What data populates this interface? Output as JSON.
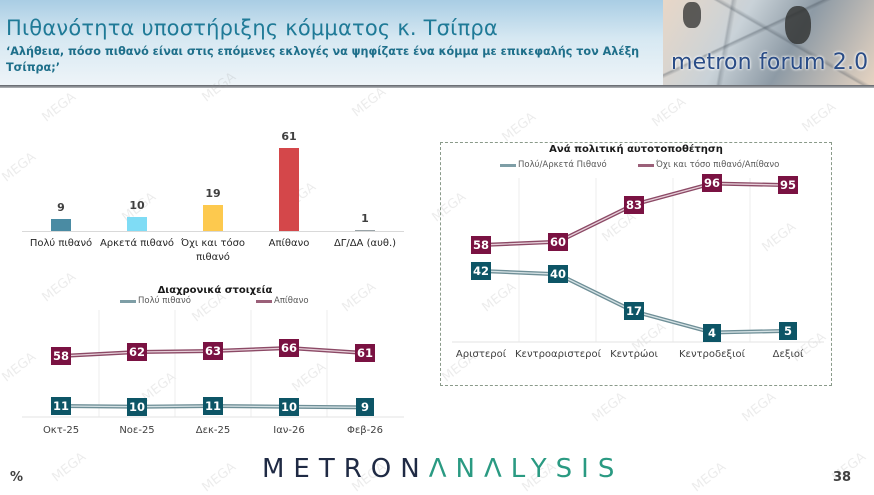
{
  "header": {
    "title": "Πιθανότητα υποστήριξης κόμματος κ. Τσίπρα",
    "subtitle": "‘Αλήθεια, πόσο πιθανό είναι στις επόμενες εκλογές να ψηφίζατε ένα κόμμα με επικεφαλής τον Αλέξη Τσίπρα;’",
    "logo_text": "metron forum 2.0"
  },
  "watermark": "MEGA",
  "chart_data": [
    {
      "type": "bar",
      "title": "",
      "categories": [
        "Πολύ πιθανό",
        "Αρκετά πιθανό",
        "Όχι και τόσο πιθανό",
        "Απίθανο",
        "ΔΓ/ΔΑ (αυθ.)"
      ],
      "values": [
        9,
        10,
        19,
        61,
        1
      ],
      "value_labels": [
        "9",
        "10",
        "19",
        "61",
        "1"
      ],
      "colors": [
        "#4a8ba3",
        "#7fdcf5",
        "#fdc94e",
        "#d4474a",
        "#9aa4a8"
      ],
      "xlabel": "",
      "ylabel": "%",
      "grid": false
    },
    {
      "type": "line",
      "title": "Διαχρονικά στοιχεία",
      "categories": [
        "Οκτ-25",
        "Νοε-25",
        "Δεκ-25",
        "Ιαν-26",
        "Φεβ-26"
      ],
      "series": [
        {
          "name": "Πολύ πιθανό",
          "values": [
            11,
            10,
            11,
            10,
            9
          ],
          "color": "#0d5566"
        },
        {
          "name": "Απίθανο",
          "values": [
            58,
            62,
            63,
            66,
            61
          ],
          "color": "#7a1242"
        }
      ],
      "legend_position": "top",
      "grid": true
    },
    {
      "type": "line",
      "title": "Ανά πολιτική αυτοτοποθέτηση",
      "categories": [
        "Αριστεροί",
        "Κεντροαριστεροί",
        "Κεντρώοι",
        "Κεντροδεξιοί",
        "Δεξιοί"
      ],
      "series": [
        {
          "name": "Πολύ/Αρκετά Πιθανό",
          "values": [
            42,
            40,
            17,
            4,
            5
          ],
          "color": "#0d5566"
        },
        {
          "name": "Όχι και τόσο πιθανό/Απίθανο",
          "values": [
            58,
            60,
            83,
            96,
            95
          ],
          "color": "#7a1242"
        }
      ],
      "legend_position": "top",
      "grid": true
    }
  ],
  "footer": {
    "unit": "%",
    "brand_part1": "METRON",
    "brand_part2": "ΛNΛLYSIS",
    "page_number": "38"
  }
}
